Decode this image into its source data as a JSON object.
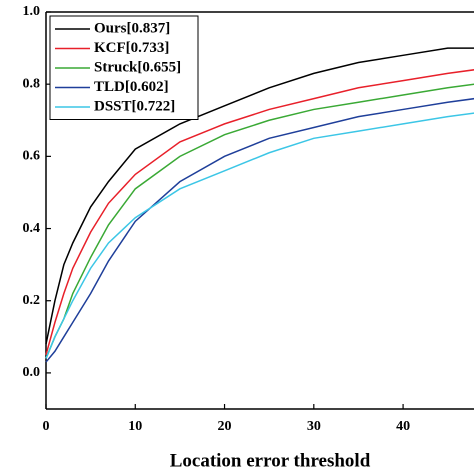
{
  "chart_data": {
    "type": "line",
    "xlabel": "Location error threshold",
    "x": [
      0,
      1,
      2,
      3,
      5,
      7,
      10,
      15,
      20,
      25,
      30,
      35,
      40,
      45,
      48
    ],
    "series": [
      {
        "name": "Ours[0.837]",
        "color": "#000000",
        "values": [
          0.08,
          0.2,
          0.3,
          0.36,
          0.46,
          0.53,
          0.62,
          0.69,
          0.74,
          0.79,
          0.83,
          0.86,
          0.88,
          0.9,
          0.9
        ]
      },
      {
        "name": "KCF[0.733]",
        "color": "#e8202a",
        "values": [
          0.05,
          0.14,
          0.22,
          0.29,
          0.39,
          0.47,
          0.55,
          0.64,
          0.69,
          0.73,
          0.76,
          0.79,
          0.81,
          0.83,
          0.84
        ]
      },
      {
        "name": "Struck[0.655]",
        "color": "#3aa935",
        "values": [
          0.04,
          0.1,
          0.15,
          0.22,
          0.32,
          0.41,
          0.51,
          0.6,
          0.66,
          0.7,
          0.73,
          0.75,
          0.77,
          0.79,
          0.8
        ]
      },
      {
        "name": "TLD[0.602]",
        "color": "#1f3f9a",
        "values": [
          0.03,
          0.06,
          0.1,
          0.14,
          0.22,
          0.31,
          0.42,
          0.53,
          0.6,
          0.65,
          0.68,
          0.71,
          0.73,
          0.75,
          0.76
        ]
      },
      {
        "name": "DSST[0.722]",
        "color": "#3cc6e6",
        "values": [
          0.04,
          0.1,
          0.15,
          0.2,
          0.29,
          0.36,
          0.43,
          0.51,
          0.56,
          0.61,
          0.65,
          0.67,
          0.69,
          0.71,
          0.72
        ]
      }
    ],
    "xlim": [
      0,
      48
    ],
    "ylim": [
      -0.1,
      1.0
    ],
    "xticks": [
      0,
      10,
      20,
      30,
      40
    ],
    "yticks": [
      {
        "value": 0,
        "label": "0.0"
      },
      0.2,
      0.4,
      0.6,
      0.8,
      {
        "value": 1,
        "label": "1.0"
      }
    ],
    "legend": "upper left"
  }
}
